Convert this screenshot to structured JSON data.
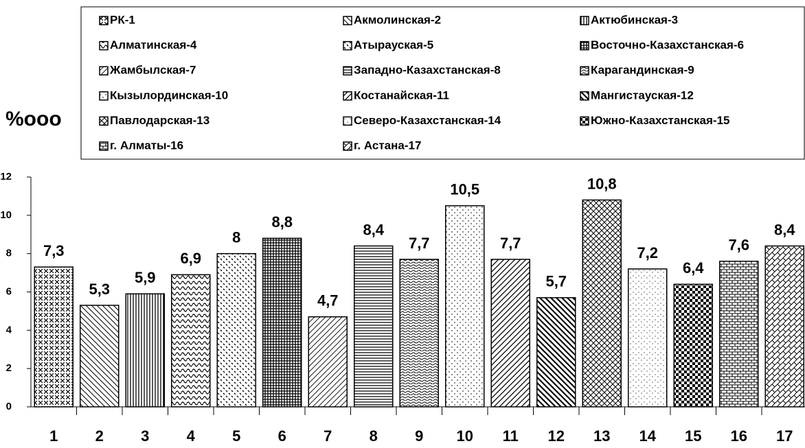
{
  "chart_data": {
    "type": "bar",
    "ylabel": "%ооо",
    "categories": [
      "1",
      "2",
      "3",
      "4",
      "5",
      "6",
      "7",
      "8",
      "9",
      "10",
      "11",
      "12",
      "13",
      "14",
      "15",
      "16",
      "17"
    ],
    "values": [
      7.3,
      5.3,
      5.9,
      6.9,
      8,
      8.8,
      4.7,
      8.4,
      7.7,
      10.5,
      7.7,
      5.7,
      10.8,
      7.2,
      6.4,
      7.6,
      8.4
    ],
    "value_labels": [
      "7,3",
      "5,3",
      "5,9",
      "6,9",
      "8",
      "8,8",
      "4,7",
      "8,4",
      "7,7",
      "10,5",
      "7,7",
      "5,7",
      "10,8",
      "7,2",
      "6,4",
      "7,6",
      "8,4"
    ],
    "legend": [
      "РК-1",
      "Акмолинская-2",
      "Актюбинская-3",
      "Алматинская-4",
      "Атырауская-5",
      "Восточно-Казахстанская-6",
      "Жамбылская-7",
      "Западно-Казахстанская-8",
      "Карагандинская-9",
      "Кызылординская-10",
      "Костанайская-11",
      "Мангистауская-12",
      "Павлодарская-13",
      "Северо-Казахстанская-14",
      "Южно-Казахстанская-15",
      "г. Алматы-16",
      "г. Астана-17"
    ],
    "color": "#000000",
    "ylim": [
      0,
      12
    ],
    "yticks": [
      0,
      2,
      4,
      6,
      8,
      10,
      12
    ]
  }
}
